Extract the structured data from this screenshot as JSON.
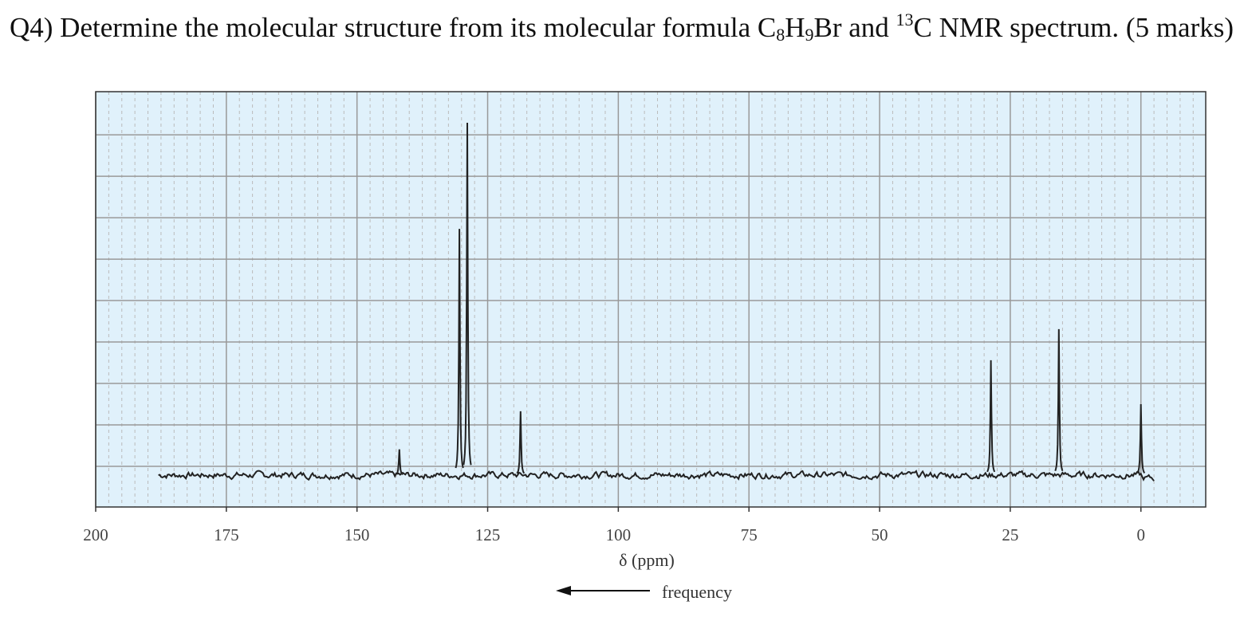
{
  "question": {
    "prefix": "Q4) Determine the molecular structure from its molecular formula C",
    "c_sub": "8",
    "h": "H",
    "h_sub": "9",
    "br_and": "Br and ",
    "sup": "13",
    "suffix": "C NMR spectrum. (5 marks)"
  },
  "chart_data": {
    "type": "line",
    "title": "",
    "xlabel": "δ (ppm)",
    "direction_label": "frequency",
    "direction_arrow": "left",
    "ylabel": "",
    "xlim": [
      200,
      -12.4
    ],
    "x_reversed": true,
    "ylim": [
      -0.77,
      9.25
    ],
    "xticks": [
      200,
      175,
      150,
      125,
      100,
      75,
      50,
      25,
      0
    ],
    "grid": true,
    "background_color": "#e0f1fb",
    "line_color": "#222222",
    "baseline_range": [
      188,
      -2.5
    ],
    "peaks": [
      {
        "ppm": 141.9,
        "intensity": 0.62
      },
      {
        "ppm": 130.4,
        "intensity": 5.94
      },
      {
        "ppm": 128.9,
        "intensity": 8.5
      },
      {
        "ppm": 118.7,
        "intensity": 1.54
      },
      {
        "ppm": 28.7,
        "intensity": 2.77
      },
      {
        "ppm": 15.7,
        "intensity": 3.52
      },
      {
        "ppm": 0,
        "intensity": 1.71
      }
    ]
  }
}
